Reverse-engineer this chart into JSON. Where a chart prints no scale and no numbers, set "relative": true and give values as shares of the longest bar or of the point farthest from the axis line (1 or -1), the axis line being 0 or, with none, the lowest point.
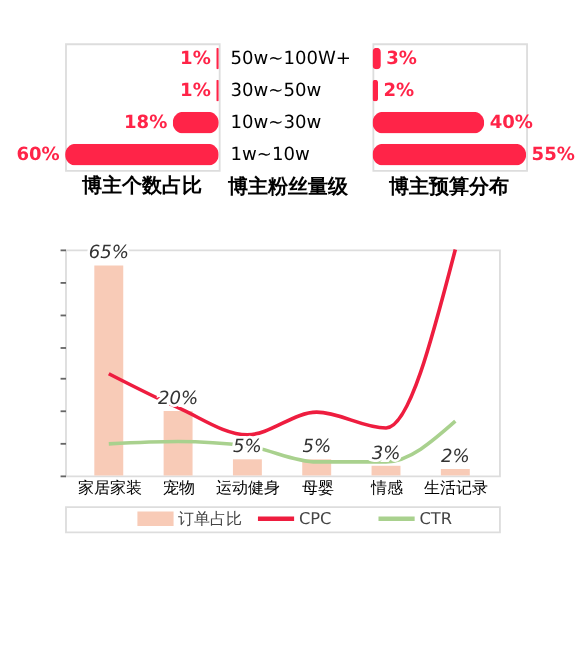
{
  "chart_data": [
    {
      "type": "bar",
      "orientation": "horizontal",
      "title": "博主个数占比",
      "ylabel": "博主粉丝量级",
      "categories": [
        "50w~100W+",
        "30w~50w",
        "10w~30w",
        "1w~10w"
      ],
      "tick_labels": "y",
      "series": [
        {
          "color": "#ff2448",
          "values": [
            1,
            1,
            18,
            60
          ],
          "value_labels": [
            "1%",
            "1%",
            "18%",
            "60%"
          ]
        }
      ]
    },
    {
      "type": "bar",
      "orientation": "horizontal",
      "title": "博主预算分布",
      "categories": [
        null,
        null,
        null,
        null
      ],
      "tick_labels": false,
      "series": [
        {
          "color": "#ff2448",
          "values": [
            3,
            2,
            40,
            55
          ],
          "value_labels": [
            "3%",
            "2%",
            "40%",
            "55%"
          ]
        }
      ]
    },
    {
      "type": "bar",
      "categories": [
        "家居家装",
        "宠物",
        "运动健身",
        "母婴",
        "情感",
        "生活记录"
      ],
      "ylim": [
        0,
        70
      ],
      "yticks": [
        {
          "value": 0,
          "label": null
        },
        {
          "value": 10,
          "label": null
        },
        {
          "value": 20,
          "label": null
        },
        {
          "value": 30,
          "label": null
        },
        {
          "value": 40,
          "label": null
        },
        {
          "value": 50,
          "label": null
        },
        {
          "value": 60,
          "label": null
        },
        {
          "value": 70,
          "label": null
        }
      ],
      "legend": "bottom",
      "grid": false,
      "series": [
        {
          "name": "订单占比",
          "color": "#f8cbb7",
          "values": [
            65,
            20,
            5,
            5,
            3,
            2
          ],
          "value_labels": [
            "65%",
            "20%",
            "5%",
            "5%",
            "3%",
            "2%"
          ]
        }
      ]
    },
    {
      "type": "line",
      "relative": true,
      "categories": [
        null,
        null,
        null,
        null,
        null,
        null
      ],
      "tick_labels": false,
      "legend": "bottom",
      "series": [
        {
          "name": "CPC",
          "color": "#ee1d3f",
          "values": [
            0.45,
            0.3,
            0.18,
            0.28,
            0.21,
            1.0
          ]
        },
        {
          "name": "CTR",
          "color": "#a9d18e",
          "values": [
            0.14,
            0.15,
            0.13,
            0.06,
            0.06,
            0.24
          ]
        }
      ]
    }
  ]
}
